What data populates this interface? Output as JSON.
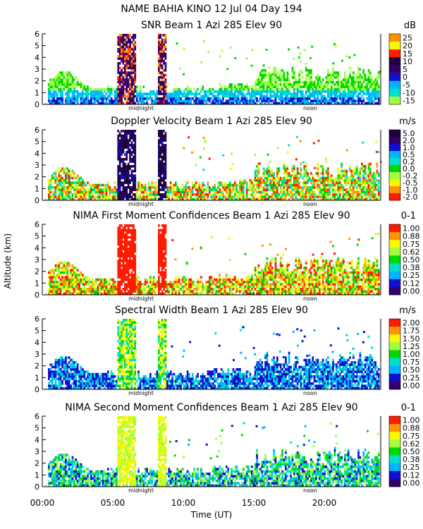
{
  "main_title": "NAME BAHIA KINO   12 Jul 04 Day 194",
  "y_axis_title": "Altitude (km)",
  "x_axis_title": "Time (UT)",
  "x_tick_labels": [
    "00:00",
    "05:00",
    "10:00",
    "15:00",
    "20:00"
  ],
  "markers": {
    "midnight": "midnight",
    "noon": "noon"
  },
  "colors": {
    "purple": "#33006b",
    "blue": "#1010d0",
    "lightblue": "#00b4ff",
    "cyan": "#00e0c8",
    "green": "#00d800",
    "lightgreen": "#a0ff40",
    "yellow": "#f8f800",
    "orange": "#ff9400",
    "red": "#ff1a00",
    "darkpurple": "#200040"
  },
  "chart_data": [
    {
      "type": "heatmap",
      "title": "SNR Beam 1 Azi 285 Elev 90",
      "unit": "dB",
      "colorbar_labels": [
        "25",
        "20",
        "15",
        "10",
        "5",
        "0",
        "-5",
        "-10",
        "-15"
      ],
      "colorbar_colors": [
        "#ff9400",
        "#f8f800",
        "#ff1a00",
        "#200040",
        "#33006b",
        "#1010d0",
        "#00b4ff",
        "#00e0c8",
        "#a0ff40"
      ],
      "y_ticks": [
        "0",
        "1",
        "2",
        "3",
        "4",
        "5",
        "6"
      ],
      "ylim": [
        0,
        6
      ],
      "xlim": [
        0,
        24
      ]
    },
    {
      "type": "heatmap",
      "title": "Doppler Velocity Beam 1 Azi 285 Elev 90",
      "unit": "m/s",
      "colorbar_labels": [
        "5.0",
        "2.0",
        "1.0",
        "0.5",
        "0.2",
        "0.0",
        "-0.2",
        "-0.5",
        "-1.0",
        "-2.0"
      ],
      "colorbar_colors": [
        "#200040",
        "#33006b",
        "#1010d0",
        "#00b4ff",
        "#00e0c8",
        "#00d800",
        "#a0ff40",
        "#f8f800",
        "#ff9400",
        "#ff1a00"
      ],
      "y_ticks": [
        "0",
        "1",
        "2",
        "3",
        "4",
        "5",
        "6"
      ],
      "ylim": [
        0,
        6
      ],
      "xlim": [
        0,
        24
      ]
    },
    {
      "type": "heatmap",
      "title": "NIMA First Moment Confidences Beam 1 Azi 285 Elev 90",
      "unit": "0-1",
      "colorbar_labels": [
        "1.00",
        "0.88",
        "0.75",
        "0.62",
        "0.50",
        "0.38",
        "0.25",
        "0.12",
        "0.00"
      ],
      "colorbar_colors": [
        "#ff1a00",
        "#ff9400",
        "#f8f800",
        "#a0ff40",
        "#00d800",
        "#00e0c8",
        "#00b4ff",
        "#1010d0",
        "#33006b"
      ],
      "y_ticks": [
        "0",
        "1",
        "2",
        "3",
        "4",
        "5",
        "6"
      ],
      "ylim": [
        0,
        6
      ],
      "xlim": [
        0,
        24
      ]
    },
    {
      "type": "heatmap",
      "title": "Spectral Width Beam 1 Azi 285 Elev 90",
      "unit": "m/s",
      "colorbar_labels": [
        "2.00",
        "1.75",
        "1.50",
        "1.25",
        "1.00",
        "0.75",
        "0.50",
        "0.25",
        "0.00"
      ],
      "colorbar_colors": [
        "#ff1a00",
        "#ff9400",
        "#f8f800",
        "#a0ff40",
        "#00d800",
        "#00e0c8",
        "#00b4ff",
        "#1010d0",
        "#33006b"
      ],
      "y_ticks": [
        "0",
        "1",
        "2",
        "3",
        "4",
        "5",
        "6"
      ],
      "ylim": [
        0,
        6
      ],
      "xlim": [
        0,
        24
      ]
    },
    {
      "type": "heatmap",
      "title": "NIMA Second Moment Confidences Beam 1 Azi 285 Elev 90",
      "unit": "0-1",
      "colorbar_labels": [
        "1.00",
        "0.88",
        "0.75",
        "0.62",
        "0.50",
        "0.38",
        "0.25",
        "0.12",
        "0.00"
      ],
      "colorbar_colors": [
        "#ff1a00",
        "#ff9400",
        "#f8f800",
        "#a0ff40",
        "#00d800",
        "#00e0c8",
        "#00b4ff",
        "#1010d0",
        "#33006b"
      ],
      "y_ticks": [
        "0",
        "1",
        "2",
        "3",
        "4",
        "5",
        "6"
      ],
      "ylim": [
        0,
        6
      ],
      "xlim": [
        0,
        24
      ]
    }
  ]
}
